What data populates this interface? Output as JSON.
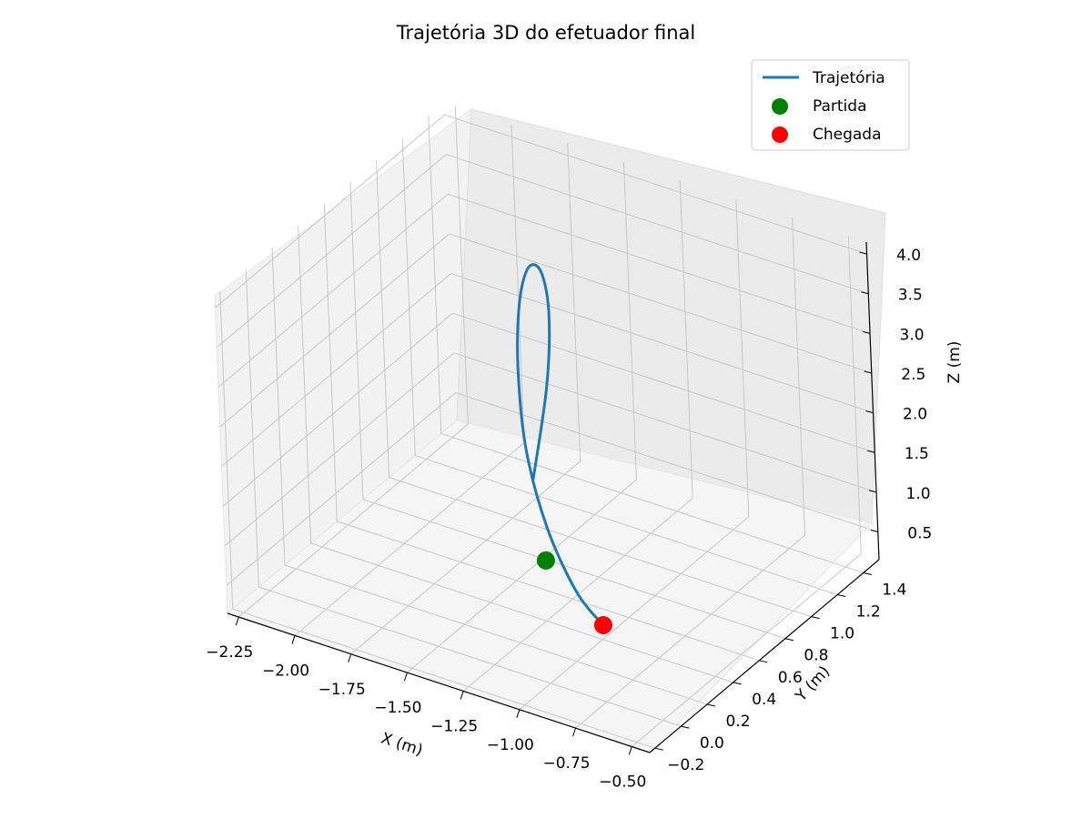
{
  "chart_data": {
    "type": "line3d",
    "title": "Trajetória 3D do efetuador final",
    "xlabel": "X (m)",
    "ylabel": "Y (m)",
    "zlabel": "Z (m)",
    "xticks": [
      "−2.25",
      "−2.00",
      "−1.75",
      "−1.50",
      "−1.25",
      "−1.00",
      "−0.75",
      "−0.50"
    ],
    "yticks": [
      "−0.2",
      "0.0",
      "0.2",
      "0.4",
      "0.6",
      "0.8",
      "1.0",
      "1.2",
      "1.4"
    ],
    "zticks": [
      "0.5",
      "1.0",
      "1.5",
      "2.0",
      "2.5",
      "3.0",
      "3.5",
      "4.0"
    ],
    "grid": true,
    "legend_position": "upper-right",
    "series": [
      {
        "name": "Trajetória",
        "kind": "line",
        "color": "#1f77b4",
        "points": [
          [
            -1.17,
            0.21,
            2.27
          ],
          [
            -1.31,
            0.57,
            2.83
          ],
          [
            -1.44,
            0.82,
            3.28
          ],
          [
            -1.53,
            0.92,
            3.58
          ],
          [
            -1.55,
            0.86,
            3.68
          ],
          [
            -1.48,
            0.67,
            3.56
          ],
          [
            -1.34,
            0.41,
            3.23
          ],
          [
            -1.16,
            0.15,
            2.74
          ],
          [
            -0.97,
            -0.03,
            2.18
          ],
          [
            -0.8,
            -0.11,
            1.64
          ],
          [
            -0.71,
            -0.07,
            1.25
          ]
        ]
      },
      {
        "name": "Partida",
        "kind": "scatter",
        "color": "#008000",
        "points": [
          [
            -1.03,
            0.05,
            1.6
          ]
        ]
      },
      {
        "name": "Chegada",
        "kind": "scatter",
        "color": "#ff0000",
        "points": [
          [
            -0.71,
            -0.07,
            1.25
          ]
        ]
      }
    ]
  }
}
